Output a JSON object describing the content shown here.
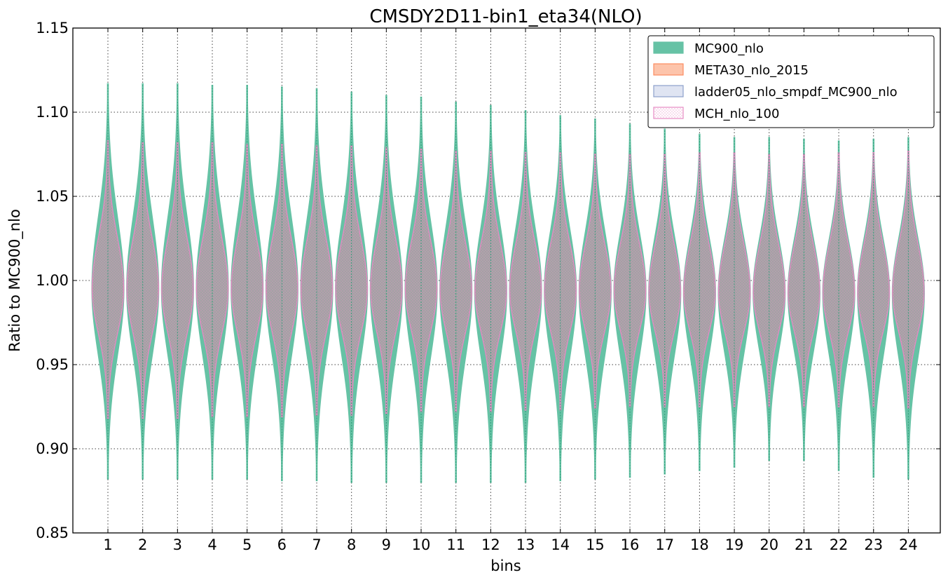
{
  "chart_data": {
    "type": "violin",
    "title": "CMSDY2D11-bin1_eta34(NLO)",
    "xlabel": "bins",
    "ylabel": "Ratio to MC900_nlo",
    "ylim": [
      0.85,
      1.15
    ],
    "yticks": [
      "0.85",
      "0.90",
      "0.95",
      "1.00",
      "1.05",
      "1.10",
      "1.15"
    ],
    "categories": [
      "1",
      "2",
      "3",
      "4",
      "5",
      "6",
      "7",
      "8",
      "9",
      "10",
      "11",
      "12",
      "13",
      "14",
      "15",
      "16",
      "17",
      "18",
      "19",
      "20",
      "21",
      "22",
      "23",
      "24"
    ],
    "grid": true,
    "legend_position": "top-right",
    "series": [
      {
        "name": "MC900_nlo",
        "color": "#66c2a5",
        "style": "filled",
        "min": [
          0.882,
          0.882,
          0.882,
          0.882,
          0.882,
          0.881,
          0.881,
          0.88,
          0.88,
          0.88,
          0.88,
          0.88,
          0.88,
          0.881,
          0.882,
          0.883,
          0.885,
          0.887,
          0.889,
          0.893,
          0.893,
          0.887,
          0.883,
          0.882
        ],
        "max": [
          1.117,
          1.117,
          1.117,
          1.116,
          1.116,
          1.115,
          1.114,
          1.112,
          1.11,
          1.109,
          1.106,
          1.104,
          1.101,
          1.098,
          1.096,
          1.093,
          1.09,
          1.087,
          1.085,
          1.085,
          1.084,
          1.083,
          1.084,
          1.085
        ],
        "center": [
          0.995,
          0.995,
          0.995,
          0.995,
          0.995,
          0.995,
          0.995,
          0.995,
          0.995,
          0.995,
          0.994,
          0.994,
          0.994,
          0.994,
          0.994,
          0.994,
          0.993,
          0.993,
          0.993,
          0.993,
          0.993,
          0.993,
          0.993,
          0.993
        ]
      },
      {
        "name": "META30_nlo_2015",
        "color": "#fc8d62",
        "style": "filled",
        "min": [
          0.918,
          0.918,
          0.918,
          0.919,
          0.919,
          0.919,
          0.92,
          0.92,
          0.921,
          0.922,
          0.922,
          0.922,
          0.923,
          0.923,
          0.924,
          0.925,
          0.925,
          0.925,
          0.925,
          0.925,
          0.925,
          0.925,
          0.925,
          0.924
        ],
        "max": [
          1.083,
          1.082,
          1.082,
          1.082,
          1.081,
          1.081,
          1.08,
          1.08,
          1.079,
          1.078,
          1.077,
          1.077,
          1.076,
          1.076,
          1.075,
          1.075,
          1.075,
          1.076,
          1.076,
          1.075,
          1.075,
          1.076,
          1.076,
          1.077
        ],
        "center": [
          0.995,
          0.995,
          0.995,
          0.995,
          0.995,
          0.995,
          0.995,
          0.995,
          0.995,
          0.995,
          0.994,
          0.994,
          0.994,
          0.994,
          0.994,
          0.994,
          0.993,
          0.993,
          0.993,
          0.993,
          0.993,
          0.993,
          0.993,
          0.993
        ]
      },
      {
        "name": "ladder05_nlo_smpdf_MC900_nlo",
        "color": "#8da0cb",
        "style": "filled",
        "min": [
          0.918,
          0.918,
          0.918,
          0.919,
          0.919,
          0.919,
          0.92,
          0.92,
          0.921,
          0.922,
          0.922,
          0.922,
          0.923,
          0.923,
          0.924,
          0.925,
          0.925,
          0.925,
          0.925,
          0.925,
          0.925,
          0.925,
          0.925,
          0.924
        ],
        "max": [
          1.083,
          1.082,
          1.082,
          1.082,
          1.081,
          1.081,
          1.08,
          1.08,
          1.079,
          1.078,
          1.077,
          1.077,
          1.076,
          1.076,
          1.075,
          1.075,
          1.075,
          1.076,
          1.076,
          1.075,
          1.075,
          1.076,
          1.076,
          1.077
        ],
        "center": [
          0.995,
          0.995,
          0.995,
          0.995,
          0.995,
          0.995,
          0.995,
          0.995,
          0.995,
          0.995,
          0.994,
          0.994,
          0.994,
          0.994,
          0.994,
          0.994,
          0.993,
          0.993,
          0.993,
          0.993,
          0.993,
          0.993,
          0.993,
          0.993
        ]
      },
      {
        "name": "MCH_nlo_100",
        "color": "#e78ac3",
        "style": "hatched",
        "min": [
          0.918,
          0.918,
          0.918,
          0.919,
          0.919,
          0.919,
          0.92,
          0.92,
          0.921,
          0.922,
          0.922,
          0.922,
          0.923,
          0.923,
          0.924,
          0.925,
          0.925,
          0.925,
          0.925,
          0.925,
          0.925,
          0.925,
          0.925,
          0.924
        ],
        "max": [
          1.083,
          1.082,
          1.082,
          1.082,
          1.081,
          1.081,
          1.08,
          1.08,
          1.079,
          1.078,
          1.077,
          1.077,
          1.076,
          1.076,
          1.075,
          1.075,
          1.075,
          1.076,
          1.076,
          1.075,
          1.075,
          1.076,
          1.076,
          1.077
        ],
        "center": [
          0.995,
          0.995,
          0.995,
          0.995,
          0.995,
          0.995,
          0.995,
          0.995,
          0.995,
          0.995,
          0.994,
          0.994,
          0.994,
          0.994,
          0.994,
          0.994,
          0.993,
          0.993,
          0.993,
          0.993,
          0.993,
          0.993,
          0.993,
          0.993
        ]
      }
    ]
  }
}
